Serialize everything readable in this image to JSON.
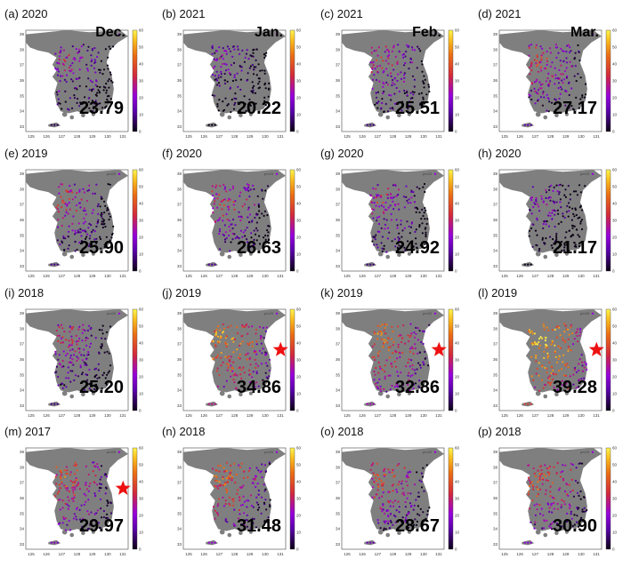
{
  "colorbar_ticks": [
    "0",
    "10",
    "20",
    "30",
    "40",
    "50",
    "60"
  ],
  "x_ticks": [
    "125",
    "126",
    "127",
    "128",
    "129",
    "130",
    "131"
  ],
  "y_ticks": [
    "33",
    "34",
    "35",
    "36",
    "37",
    "38",
    "39"
  ],
  "legend_series": "pm25",
  "colors": {
    "land": "#7f7f7f",
    "star": "#ee1111",
    "background": "#ffffff"
  },
  "chart_data": [
    {
      "id": "a",
      "title": "(a) 2020",
      "month": "Dec.",
      "value": "23.79",
      "highlight": false
    },
    {
      "id": "b",
      "title": "(b) 2021",
      "month": "Jan.",
      "value": "20.22",
      "highlight": false
    },
    {
      "id": "c",
      "title": "(c) 2021",
      "month": "Feb.",
      "value": "25.51",
      "highlight": false
    },
    {
      "id": "d",
      "title": "(d) 2021",
      "month": "Mar.",
      "value": "27.17",
      "highlight": false
    },
    {
      "id": "e",
      "title": "(e) 2019",
      "month": "",
      "value": "25.90",
      "highlight": false
    },
    {
      "id": "f",
      "title": "(f) 2020",
      "month": "",
      "value": "26.63",
      "highlight": false
    },
    {
      "id": "g",
      "title": "(g) 2020",
      "month": "",
      "value": "24.92",
      "highlight": false
    },
    {
      "id": "h",
      "title": "(h) 2020",
      "month": "",
      "value": "21.17",
      "highlight": false
    },
    {
      "id": "i",
      "title": "(i) 2018",
      "month": "",
      "value": "25.20",
      "highlight": false
    },
    {
      "id": "j",
      "title": "(j) 2019",
      "month": "",
      "value": "34.86",
      "highlight": true
    },
    {
      "id": "k",
      "title": "(k) 2019",
      "month": "",
      "value": "32.86",
      "highlight": true
    },
    {
      "id": "l",
      "title": "(l) 2019",
      "month": "",
      "value": "39.28",
      "highlight": true
    },
    {
      "id": "m",
      "title": "(m) 2017",
      "month": "",
      "value": "29.97",
      "highlight": true
    },
    {
      "id": "n",
      "title": "(n) 2018",
      "month": "",
      "value": "31.48",
      "highlight": false
    },
    {
      "id": "o",
      "title": "(o) 2018",
      "month": "",
      "value": "28.67",
      "highlight": false
    },
    {
      "id": "p",
      "title": "(p) 2018",
      "month": "",
      "value": "30.90",
      "highlight": false
    }
  ]
}
